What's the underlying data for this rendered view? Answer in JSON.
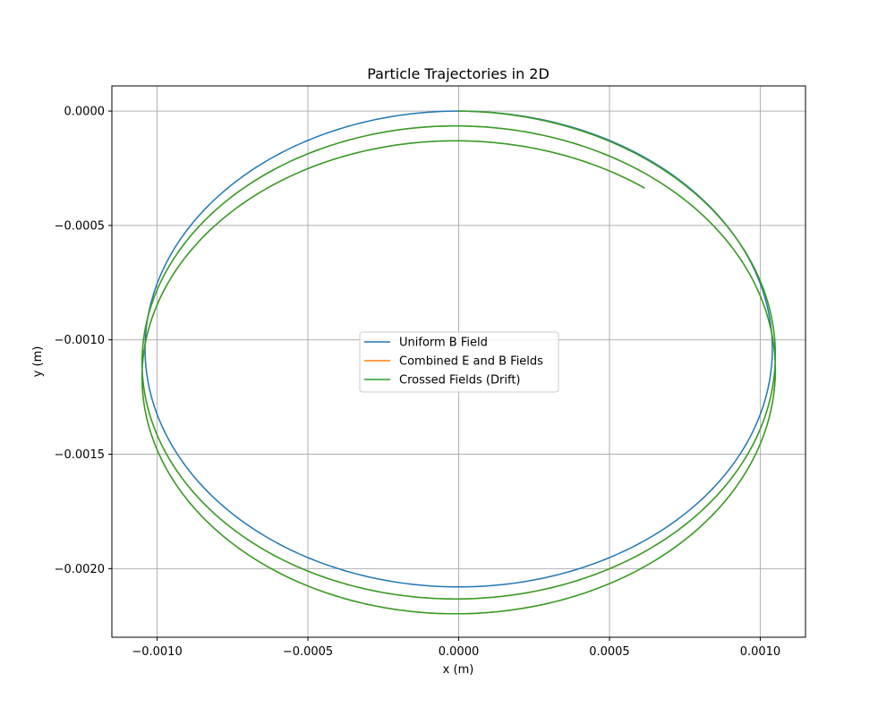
{
  "chart_data": {
    "type": "line",
    "title": "Particle Trajectories in 2D",
    "xlabel": "x (m)",
    "ylabel": "y (m)",
    "xlim": [
      -0.00115,
      0.00115
    ],
    "ylim": [
      -0.0023,
      0.00011
    ],
    "xticks": [
      -0.001,
      -0.0005,
      0.0,
      0.0005,
      0.001
    ],
    "xtick_labels": [
      "−0.0010",
      "−0.0005",
      "0.0000",
      "0.0005",
      "0.0010"
    ],
    "yticks": [
      0.0,
      -0.0005,
      -0.001,
      -0.0015,
      -0.002
    ],
    "ytick_labels": [
      "0.0000",
      "−0.0005",
      "−0.0010",
      "−0.0015",
      "−0.0020"
    ],
    "grid": true,
    "legend_position": "center",
    "series": [
      {
        "name": "Uniform B Field",
        "color": "#1f77b4",
        "kind": "circle",
        "center": [
          0.0,
          -0.00104
        ],
        "radius": 0.00104
      },
      {
        "name": "Combined E and B Fields",
        "color": "#ff7f0e",
        "kind": "drift_spiral",
        "start": [
          0.0,
          0.0
        ],
        "radius": 0.00105,
        "turns": 2.1,
        "drift_y_per_turn": -6.5e-05
      },
      {
        "name": "Crossed Fields (Drift)",
        "color": "#2ca02c",
        "kind": "drift_spiral",
        "start": [
          0.0,
          0.0
        ],
        "radius": 0.00105,
        "turns": 2.1,
        "drift_y_per_turn": -6.5e-05
      }
    ]
  }
}
